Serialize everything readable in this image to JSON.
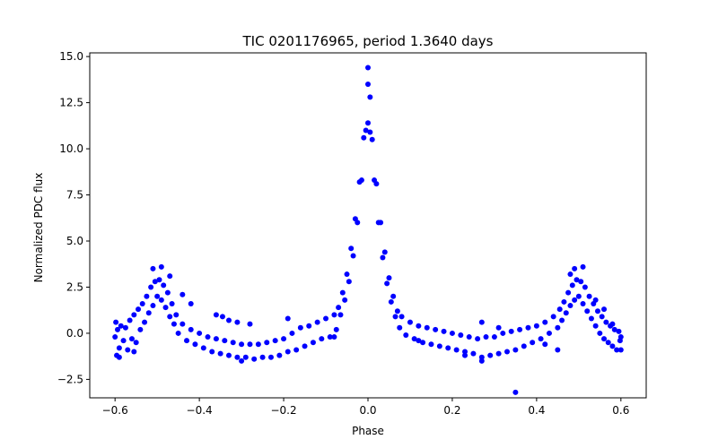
{
  "chart_data": {
    "type": "scatter",
    "title": "TIC 0201176965, period 1.3640 days",
    "xlabel": "Phase",
    "ylabel": "Normalized PDC flux",
    "xlim": [
      -0.66,
      0.66
    ],
    "ylim": [
      -3.5,
      15.2
    ],
    "xticks": [
      -0.6,
      -0.4,
      -0.2,
      0.0,
      0.2,
      0.4,
      0.6
    ],
    "xtick_labels": [
      "−0.6",
      "−0.4",
      "−0.2",
      "0.0",
      "0.2",
      "0.4",
      "0.6"
    ],
    "yticks": [
      -2.5,
      0.0,
      2.5,
      5.0,
      7.5,
      10.0,
      12.5,
      15.0
    ],
    "ytick_labels": [
      "−2.5",
      "0.0",
      "2.5",
      "5.0",
      "7.5",
      "10.0",
      "12.5",
      "15.0"
    ],
    "grid": false,
    "marker_color": "#0000ff",
    "series": [
      {
        "points": [
          [
            -0.6,
            -0.2
          ],
          [
            -0.598,
            0.6
          ],
          [
            -0.596,
            -1.2
          ],
          [
            -0.594,
            0.2
          ],
          [
            -0.59,
            -0.8
          ],
          [
            -0.586,
            0.4
          ],
          [
            -0.58,
            -0.4
          ],
          [
            -0.575,
            0.3
          ],
          [
            -0.57,
            -0.9
          ],
          [
            -0.565,
            0.7
          ],
          [
            -0.56,
            -0.3
          ],
          [
            -0.555,
            1.0
          ],
          [
            -0.55,
            -0.5
          ],
          [
            -0.545,
            1.3
          ],
          [
            -0.54,
            0.2
          ],
          [
            -0.535,
            1.6
          ],
          [
            -0.53,
            0.6
          ],
          [
            -0.525,
            2.0
          ],
          [
            -0.52,
            1.1
          ],
          [
            -0.515,
            2.5
          ],
          [
            -0.51,
            1.5
          ],
          [
            -0.505,
            2.8
          ],
          [
            -0.5,
            2.0
          ],
          [
            -0.495,
            2.9
          ],
          [
            -0.49,
            1.8
          ],
          [
            -0.485,
            2.6
          ],
          [
            -0.48,
            1.4
          ],
          [
            -0.475,
            2.2
          ],
          [
            -0.47,
            0.9
          ],
          [
            -0.465,
            1.6
          ],
          [
            -0.46,
            0.5
          ],
          [
            -0.455,
            1.0
          ],
          [
            -0.45,
            0.0
          ],
          [
            -0.44,
            0.5
          ],
          [
            -0.43,
            -0.4
          ],
          [
            -0.42,
            0.2
          ],
          [
            -0.41,
            -0.6
          ],
          [
            -0.4,
            0.0
          ],
          [
            -0.39,
            -0.8
          ],
          [
            -0.38,
            -0.2
          ],
          [
            -0.37,
            -1.0
          ],
          [
            -0.36,
            -0.3
          ],
          [
            -0.35,
            -1.1
          ],
          [
            -0.34,
            -0.4
          ],
          [
            -0.33,
            -1.2
          ],
          [
            -0.32,
            -0.5
          ],
          [
            -0.31,
            -1.3
          ],
          [
            -0.3,
            -0.6
          ],
          [
            -0.29,
            -1.3
          ],
          [
            -0.28,
            -0.6
          ],
          [
            -0.27,
            -1.4
          ],
          [
            -0.26,
            -0.6
          ],
          [
            -0.25,
            -1.3
          ],
          [
            -0.24,
            -0.5
          ],
          [
            -0.23,
            -1.3
          ],
          [
            -0.22,
            -0.4
          ],
          [
            -0.21,
            -1.2
          ],
          [
            -0.2,
            -0.3
          ],
          [
            -0.19,
            -1.0
          ],
          [
            -0.18,
            0.0
          ],
          [
            -0.17,
            -0.9
          ],
          [
            -0.16,
            0.3
          ],
          [
            -0.15,
            -0.7
          ],
          [
            -0.14,
            0.4
          ],
          [
            -0.13,
            -0.5
          ],
          [
            -0.12,
            0.6
          ],
          [
            -0.11,
            -0.3
          ],
          [
            -0.1,
            0.8
          ],
          [
            -0.09,
            -0.2
          ],
          [
            -0.08,
            1.0
          ],
          [
            -0.075,
            0.2
          ],
          [
            -0.07,
            1.4
          ],
          [
            -0.065,
            1.0
          ],
          [
            -0.06,
            2.2
          ],
          [
            -0.055,
            1.8
          ],
          [
            -0.05,
            3.2
          ],
          [
            -0.045,
            2.8
          ],
          [
            -0.04,
            4.6
          ],
          [
            -0.035,
            4.2
          ],
          [
            -0.03,
            6.2
          ],
          [
            -0.025,
            6.0
          ],
          [
            -0.02,
            8.2
          ],
          [
            -0.015,
            8.3
          ],
          [
            -0.01,
            10.6
          ],
          [
            -0.005,
            11.0
          ],
          [
            0.0,
            13.5
          ],
          [
            0.0,
            11.4
          ],
          [
            0.0,
            14.4
          ],
          [
            0.005,
            12.8
          ],
          [
            0.005,
            10.9
          ],
          [
            0.01,
            10.5
          ],
          [
            0.015,
            8.3
          ],
          [
            0.02,
            8.1
          ],
          [
            0.025,
            6.0
          ],
          [
            0.03,
            6.0
          ],
          [
            0.035,
            4.1
          ],
          [
            0.04,
            4.4
          ],
          [
            0.045,
            2.7
          ],
          [
            0.05,
            3.0
          ],
          [
            0.055,
            1.7
          ],
          [
            0.06,
            2.0
          ],
          [
            0.065,
            0.9
          ],
          [
            0.07,
            1.2
          ],
          [
            0.075,
            0.3
          ],
          [
            0.08,
            0.9
          ],
          [
            0.09,
            -0.1
          ],
          [
            0.1,
            0.6
          ],
          [
            0.11,
            -0.3
          ],
          [
            0.12,
            0.4
          ],
          [
            0.13,
            -0.5
          ],
          [
            0.14,
            0.3
          ],
          [
            0.15,
            -0.6
          ],
          [
            0.16,
            0.2
          ],
          [
            0.17,
            -0.7
          ],
          [
            0.18,
            0.1
          ],
          [
            0.19,
            -0.8
          ],
          [
            0.2,
            0.0
          ],
          [
            0.21,
            -0.9
          ],
          [
            0.22,
            -0.1
          ],
          [
            0.23,
            -1.0
          ],
          [
            0.24,
            -0.2
          ],
          [
            0.25,
            -1.1
          ],
          [
            0.26,
            -0.3
          ],
          [
            0.27,
            -1.3
          ],
          [
            0.28,
            -0.2
          ],
          [
            0.29,
            -1.2
          ],
          [
            0.3,
            -0.2
          ],
          [
            0.31,
            -1.1
          ],
          [
            0.32,
            0.0
          ],
          [
            0.33,
            -1.0
          ],
          [
            0.34,
            0.1
          ],
          [
            0.35,
            -0.9
          ],
          [
            0.36,
            0.2
          ],
          [
            0.37,
            -0.7
          ],
          [
            0.38,
            0.3
          ],
          [
            0.39,
            -0.5
          ],
          [
            0.4,
            0.4
          ],
          [
            0.41,
            -0.3
          ],
          [
            0.42,
            0.6
          ],
          [
            0.43,
            0.0
          ],
          [
            0.44,
            0.9
          ],
          [
            0.45,
            0.3
          ],
          [
            0.455,
            1.3
          ],
          [
            0.46,
            0.7
          ],
          [
            0.465,
            1.7
          ],
          [
            0.47,
            1.1
          ],
          [
            0.475,
            2.2
          ],
          [
            0.48,
            1.5
          ],
          [
            0.485,
            2.6
          ],
          [
            0.49,
            1.8
          ],
          [
            0.495,
            2.9
          ],
          [
            0.5,
            2.0
          ],
          [
            0.505,
            2.8
          ],
          [
            0.51,
            1.6
          ],
          [
            0.515,
            2.5
          ],
          [
            0.52,
            1.2
          ],
          [
            0.525,
            2.0
          ],
          [
            0.53,
            0.8
          ],
          [
            0.535,
            1.6
          ],
          [
            0.54,
            0.4
          ],
          [
            0.545,
            1.2
          ],
          [
            0.55,
            0.0
          ],
          [
            0.555,
            0.9
          ],
          [
            0.56,
            -0.3
          ],
          [
            0.565,
            0.6
          ],
          [
            0.57,
            -0.5
          ],
          [
            0.575,
            0.4
          ],
          [
            0.58,
            -0.7
          ],
          [
            0.585,
            0.2
          ],
          [
            0.59,
            -0.9
          ],
          [
            0.595,
            0.1
          ],
          [
            0.598,
            -0.4
          ],
          [
            0.6,
            -0.2
          ],
          [
            -0.51,
            3.5
          ],
          [
            -0.49,
            3.6
          ],
          [
            -0.47,
            3.1
          ],
          [
            -0.44,
            2.1
          ],
          [
            -0.42,
            1.6
          ],
          [
            -0.36,
            1.0
          ],
          [
            -0.345,
            0.9
          ],
          [
            -0.33,
            0.7
          ],
          [
            -0.31,
            0.6
          ],
          [
            -0.28,
            0.5
          ],
          [
            -0.555,
            -1.0
          ],
          [
            -0.19,
            0.8
          ],
          [
            -0.08,
            -0.2
          ],
          [
            0.27,
            0.6
          ],
          [
            0.31,
            0.3
          ],
          [
            0.45,
            -0.9
          ],
          [
            0.54,
            1.8
          ],
          [
            0.56,
            1.3
          ],
          [
            0.58,
            0.5
          ],
          [
            0.49,
            3.5
          ],
          [
            0.51,
            3.6
          ],
          [
            0.48,
            3.2
          ],
          [
            0.35,
            -3.2
          ],
          [
            0.27,
            -1.5
          ],
          [
            -0.59,
            -1.3
          ],
          [
            0.6,
            -0.9
          ],
          [
            0.12,
            -0.4
          ],
          [
            -0.3,
            -1.5
          ],
          [
            0.23,
            -1.2
          ],
          [
            0.42,
            -0.6
          ]
        ]
      }
    ]
  }
}
